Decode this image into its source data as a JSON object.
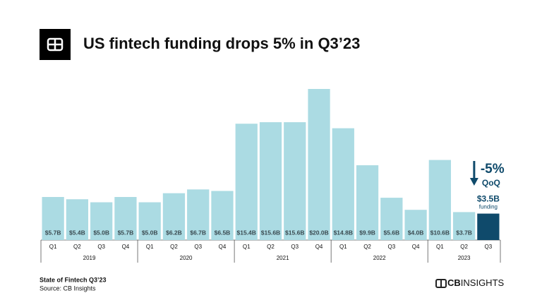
{
  "chart_data": {
    "type": "bar",
    "title": "US fintech funding drops 5% in Q3’23",
    "color": "#abdbe3",
    "highlight_color": "#0f4a6b",
    "label_color": "#3a4a50",
    "groups": [
      {
        "label": "2019",
        "categories": [
          "Q1",
          "Q2",
          "Q3",
          "Q4"
        ],
        "values": [
          5.7,
          5.4,
          5.0,
          5.7
        ],
        "value_labels": [
          "$5.7B",
          "$5.4B",
          "$5.0B",
          "$5.7B"
        ]
      },
      {
        "label": "2020",
        "categories": [
          "Q1",
          "Q2",
          "Q3",
          "Q4"
        ],
        "values": [
          5.0,
          6.2,
          6.7,
          6.5
        ],
        "value_labels": [
          "$5.0B",
          "$6.2B",
          "$6.7B",
          "$6.5B"
        ]
      },
      {
        "label": "2021",
        "categories": [
          "Q1",
          "Q2",
          "Q3",
          "Q4"
        ],
        "values": [
          15.4,
          15.6,
          15.6,
          20.0
        ],
        "value_labels": [
          "$15.4B",
          "$15.6B",
          "$15.6B",
          "$20.0B"
        ]
      },
      {
        "label": "2022",
        "categories": [
          "Q1",
          "Q2",
          "Q3",
          "Q4"
        ],
        "values": [
          14.8,
          9.9,
          5.6,
          4.0
        ],
        "value_labels": [
          "$14.8B",
          "$9.9B",
          "$5.6B",
          "$4.0B"
        ]
      },
      {
        "label": "2023",
        "categories": [
          "Q1",
          "Q2",
          "Q3"
        ],
        "values": [
          10.6,
          3.7,
          3.5
        ],
        "value_labels": [
          "$10.6B",
          "$3.7B",
          "$3.5B"
        ]
      }
    ],
    "annotation": {
      "change": "-5%",
      "change_label": "QoQ",
      "value_note": "funding"
    },
    "footer": {
      "report": "State of Fintech Q3’23",
      "source": "Source: CB Insights"
    },
    "logo": {
      "bold": "CB",
      "regular": "INSIGHTS"
    }
  }
}
